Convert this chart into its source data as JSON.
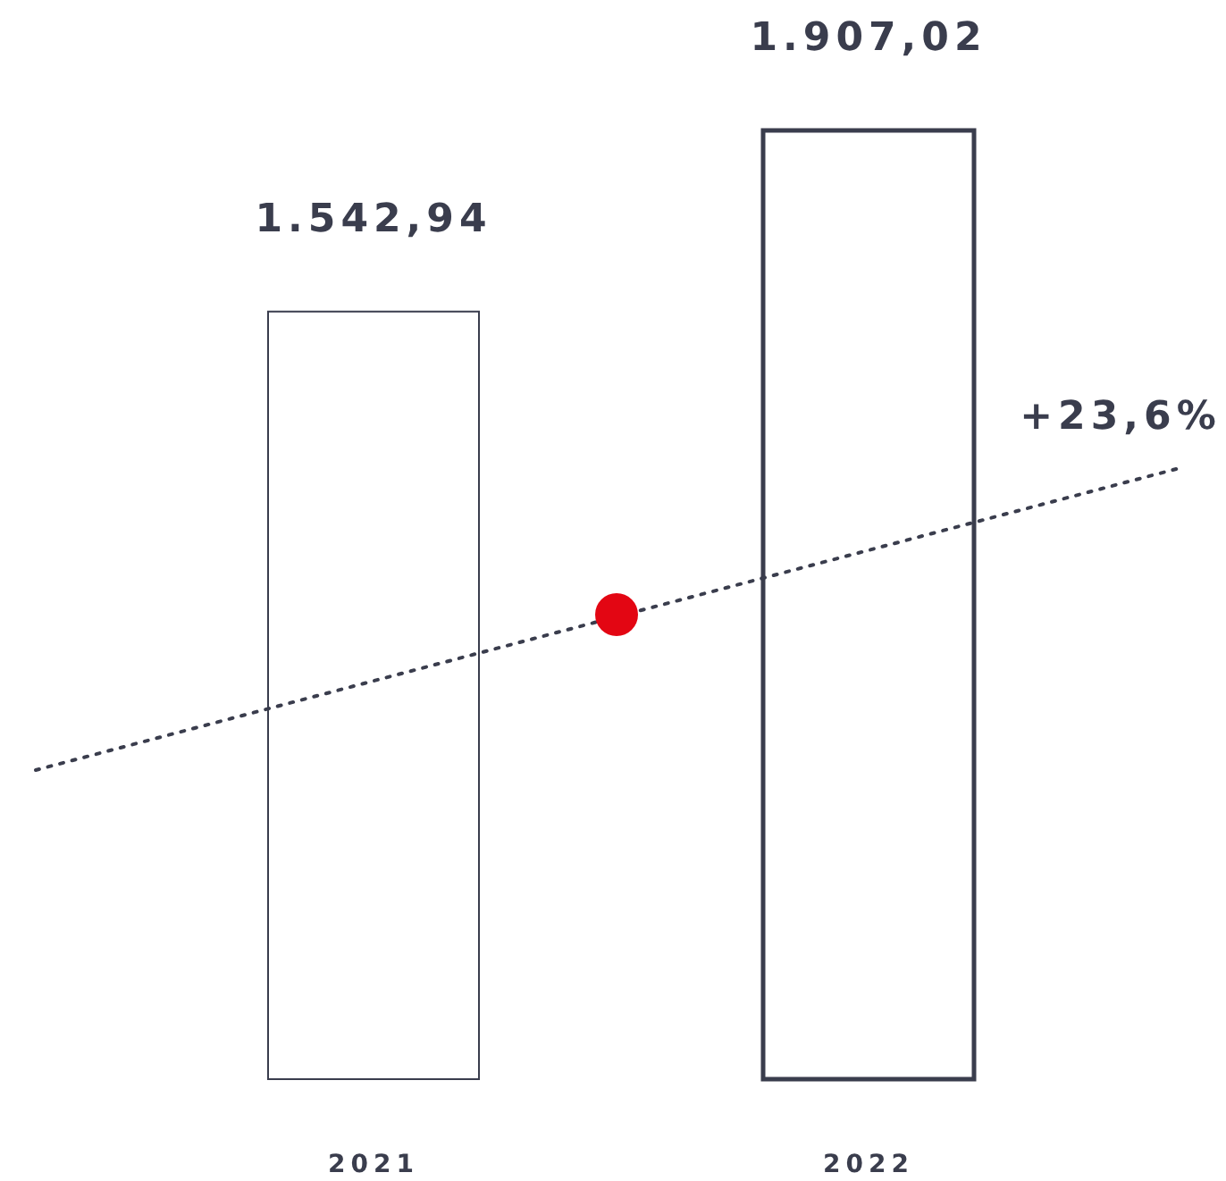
{
  "chart_data": {
    "type": "bar",
    "categories": [
      "2021",
      "2022"
    ],
    "series": [
      {
        "color": "#3a3d4d",
        "values": [
          1542.94,
          1907.02
        ],
        "value_labels": [
          "1.542,94",
          "1.907,02"
        ]
      }
    ],
    "annotations": [
      "+23,6%"
    ],
    "tick_labels": "x"
  }
}
